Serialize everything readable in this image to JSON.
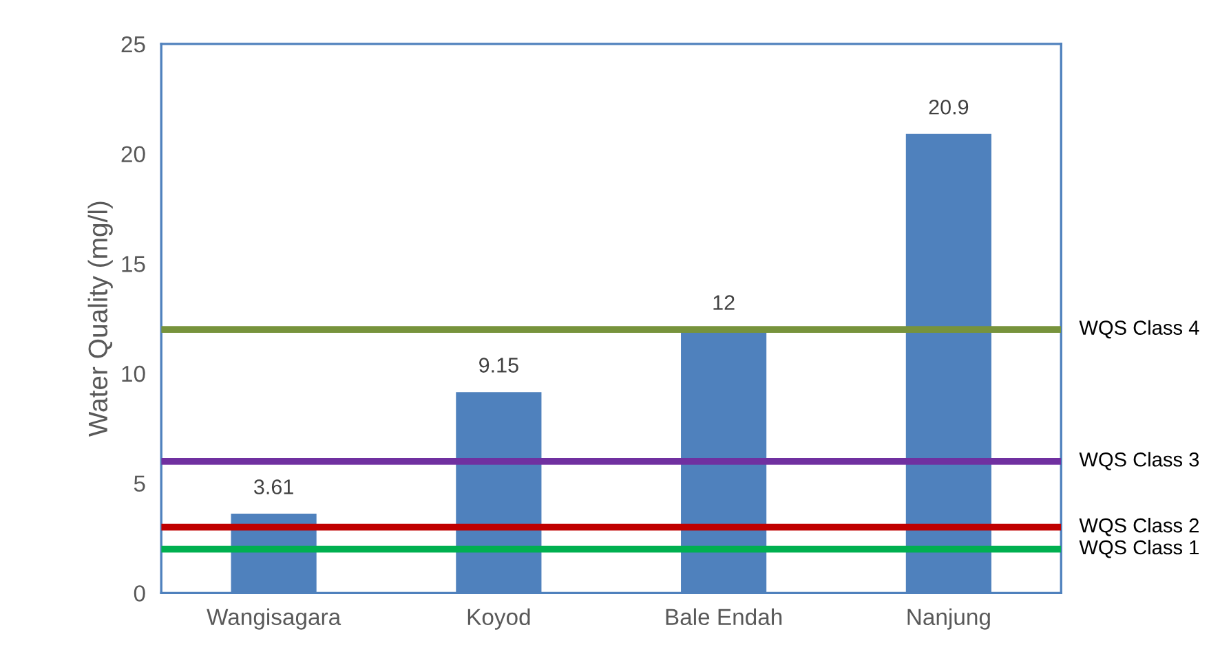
{
  "chart_data": {
    "type": "bar",
    "ylabel": "Water Quality (mg/l)",
    "categories": [
      "Wangisagara",
      "Koyod",
      "Bale Endah",
      "Nanjung"
    ],
    "values": [
      3.61,
      9.15,
      12,
      20.9
    ],
    "color": "#4f81bd",
    "data_labels": true,
    "ylim": [
      0,
      25
    ],
    "yticks": [
      0,
      5,
      10,
      15,
      20,
      25
    ],
    "grid": false,
    "legend": false,
    "ref_lines": [
      {
        "axis": "y",
        "value": 12,
        "label": "WQS Class 4",
        "color": "#77933c",
        "line_style": "solid"
      },
      {
        "axis": "y",
        "value": 6,
        "label": "WQS Class 3",
        "color": "#7030a0",
        "line_style": "solid"
      },
      {
        "axis": "y",
        "value": 3,
        "label": "WQS Class 2",
        "color": "#c00000",
        "line_style": "solid"
      },
      {
        "axis": "y",
        "value": 2,
        "label": "WQS Class 1",
        "color": "#00b050",
        "line_style": "solid"
      }
    ]
  }
}
